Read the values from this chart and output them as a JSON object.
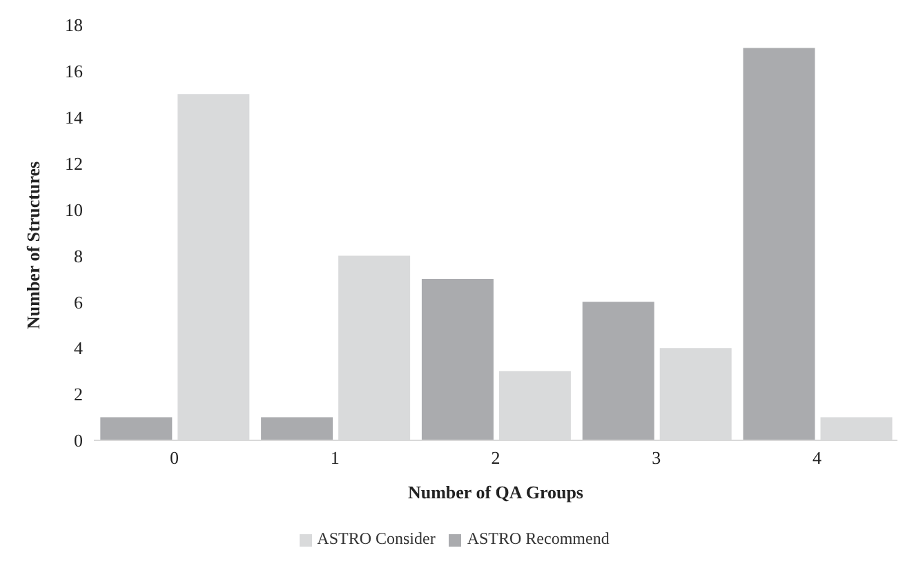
{
  "chart_data": {
    "type": "bar",
    "xlabel": "Number of QA Groups",
    "ylabel": "Number of Structures",
    "categories": [
      "0",
      "1",
      "2",
      "3",
      "4"
    ],
    "series": [
      {
        "name": "ASTRO Recommend",
        "color": "#aaabae",
        "values": [
          1,
          1,
          7,
          6,
          17
        ]
      },
      {
        "name": "ASTRO Consider",
        "color": "#d9dadb",
        "values": [
          15,
          8,
          3,
          4,
          1
        ]
      }
    ],
    "ylim": [
      0,
      18
    ],
    "yticks": [
      0,
      2,
      4,
      6,
      8,
      10,
      12,
      14,
      16,
      18
    ],
    "grid": false,
    "legend": "bottom"
  }
}
